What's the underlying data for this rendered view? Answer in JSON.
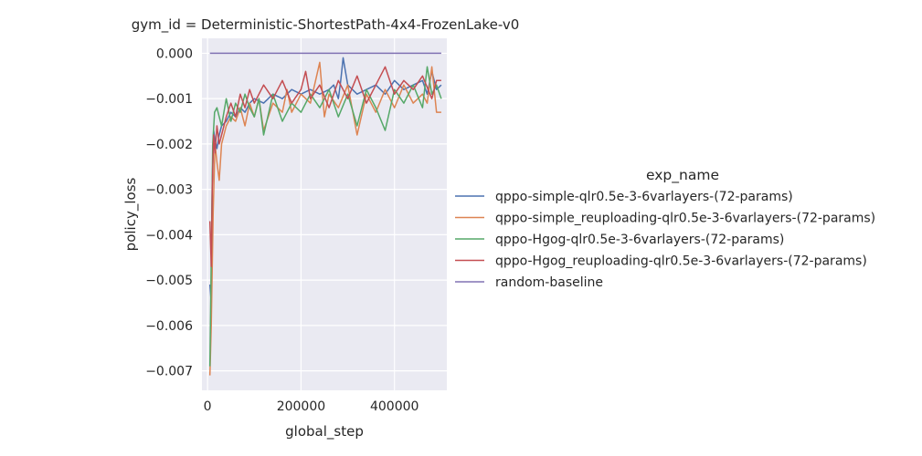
{
  "chart_data": {
    "type": "line",
    "title": "gym_id = Deterministic-ShortestPath-4x4-FrozenLake-v0",
    "xlabel": "global_step",
    "ylabel": "policy_loss",
    "xlim": [
      -12000,
      512000
    ],
    "ylim": [
      -0.00743,
      0.00033
    ],
    "xticks": [
      0,
      200000,
      400000
    ],
    "xtick_labels": [
      "0",
      "200000",
      "400000"
    ],
    "yticks": [
      0,
      -0.001,
      -0.002,
      -0.003,
      -0.004,
      -0.005,
      -0.006,
      -0.007
    ],
    "ytick_labels": [
      "0.000",
      "−0.001",
      "−0.002",
      "−0.003",
      "−0.004",
      "−0.005",
      "−0.006",
      "−0.007"
    ],
    "grid": true,
    "legend_title": "exp_name",
    "legend_position": "right",
    "series": [
      {
        "name": "qppo-simple-qlr0.5e-3-6varlayers-(72-params)",
        "color": "#4c72b0",
        "x": [
          5000,
          8000,
          10000,
          13000,
          16000,
          20000,
          25000,
          30000,
          40000,
          50000,
          60000,
          70000,
          80000,
          90000,
          100000,
          120000,
          140000,
          160000,
          180000,
          200000,
          220000,
          240000,
          260000,
          270000,
          280000,
          285000,
          290000,
          300000,
          320000,
          340000,
          360000,
          380000,
          400000,
          420000,
          440000,
          460000,
          470000,
          480000,
          490000,
          500000
        ],
        "y": [
          -0.0051,
          -0.0055,
          -0.0028,
          -0.0017,
          -0.0019,
          -0.0021,
          -0.0018,
          -0.0016,
          -0.0015,
          -0.0013,
          -0.0014,
          -0.0012,
          -0.0013,
          -0.0011,
          -0.001,
          -0.0011,
          -0.0009,
          -0.001,
          -0.0008,
          -0.0009,
          -0.0008,
          -0.0009,
          -0.0008,
          -0.0007,
          -0.001,
          -0.0006,
          -0.0001,
          -0.0007,
          -0.0009,
          -0.0008,
          -0.0007,
          -0.0009,
          -0.0006,
          -0.0008,
          -0.0007,
          -0.0006,
          -0.0009,
          -0.0004,
          -0.0008,
          -0.0007
        ]
      },
      {
        "name": "qppo-simple_reuploading-qlr0.5e-3-6varlayers-(72-params)",
        "color": "#dd8452",
        "x": [
          5000,
          8000,
          12000,
          16000,
          20000,
          25000,
          30000,
          40000,
          50000,
          60000,
          70000,
          80000,
          90000,
          100000,
          110000,
          120000,
          140000,
          160000,
          170000,
          180000,
          200000,
          220000,
          240000,
          250000,
          260000,
          280000,
          300000,
          320000,
          340000,
          360000,
          380000,
          400000,
          420000,
          440000,
          460000,
          470000,
          480000,
          490000,
          500000
        ],
        "y": [
          -0.0071,
          -0.006,
          -0.0035,
          -0.002,
          -0.0024,
          -0.0028,
          -0.002,
          -0.0016,
          -0.0014,
          -0.0015,
          -0.0012,
          -0.0016,
          -0.0011,
          -0.0014,
          -0.001,
          -0.0017,
          -0.0011,
          -0.0013,
          -0.0008,
          -0.0013,
          -0.0009,
          -0.0011,
          -0.0002,
          -0.0014,
          -0.0009,
          -0.0012,
          -0.0007,
          -0.0018,
          -0.0009,
          -0.0013,
          -0.0008,
          -0.0012,
          -0.0007,
          -0.0011,
          -0.0009,
          -0.0011,
          -0.0003,
          -0.0013,
          -0.0013
        ]
      },
      {
        "name": "qppo-Hgog-qlr0.5e-3-6varlayers-(72-params)",
        "color": "#55a868",
        "x": [
          5000,
          8000,
          11000,
          15000,
          20000,
          25000,
          30000,
          35000,
          40000,
          50000,
          60000,
          70000,
          80000,
          90000,
          100000,
          110000,
          120000,
          140000,
          160000,
          180000,
          200000,
          220000,
          240000,
          260000,
          280000,
          300000,
          320000,
          340000,
          360000,
          380000,
          400000,
          420000,
          440000,
          460000,
          470000,
          480000,
          490000,
          500000
        ],
        "y": [
          -0.0069,
          -0.0045,
          -0.002,
          -0.0013,
          -0.0012,
          -0.0014,
          -0.0016,
          -0.0013,
          -0.001,
          -0.0015,
          -0.0011,
          -0.0013,
          -0.0009,
          -0.0012,
          -0.0014,
          -0.001,
          -0.0018,
          -0.0009,
          -0.0015,
          -0.0011,
          -0.0013,
          -0.0009,
          -0.0012,
          -0.0008,
          -0.0014,
          -0.0009,
          -0.0016,
          -0.0008,
          -0.0012,
          -0.0017,
          -0.0008,
          -0.0011,
          -0.0007,
          -0.0012,
          -0.0003,
          -0.0009,
          -0.0007,
          -0.001
        ]
      },
      {
        "name": "qppo-Hgog_reuploading-qlr0.5e-3-6varlayers-(72-params)",
        "color": "#c44e52",
        "x": [
          5000,
          8000,
          10000,
          13000,
          16000,
          20000,
          25000,
          30000,
          40000,
          50000,
          60000,
          70000,
          80000,
          90000,
          100000,
          120000,
          140000,
          160000,
          180000,
          200000,
          210000,
          220000,
          240000,
          260000,
          280000,
          300000,
          320000,
          340000,
          360000,
          380000,
          400000,
          420000,
          440000,
          460000,
          480000,
          490000,
          500000
        ],
        "y": [
          -0.0037,
          -0.0047,
          -0.003,
          -0.0018,
          -0.0022,
          -0.0016,
          -0.002,
          -0.0018,
          -0.0014,
          -0.0011,
          -0.0014,
          -0.0009,
          -0.0012,
          -0.0008,
          -0.0011,
          -0.0007,
          -0.001,
          -0.0006,
          -0.0011,
          -0.0008,
          -0.0004,
          -0.001,
          -0.0007,
          -0.0012,
          -0.0006,
          -0.001,
          -0.0005,
          -0.0011,
          -0.0007,
          -0.0003,
          -0.0009,
          -0.0006,
          -0.0008,
          -0.0005,
          -0.001,
          -0.0006,
          -0.0006
        ]
      },
      {
        "name": "random-baseline",
        "color": "#8172b3",
        "x": [
          5000,
          500000
        ],
        "y": [
          0.0,
          0.0
        ]
      }
    ]
  }
}
